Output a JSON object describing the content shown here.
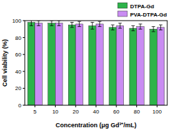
{
  "chart_data": {
    "type": "bar",
    "x_label": "Concentration (μg Gd³⁺/mL)",
    "y_label": "Cell viability (%)",
    "categories": [
      "5",
      "10",
      "20",
      "40",
      "60",
      "80",
      "100"
    ],
    "series": [
      {
        "name": "DTPA-Gd",
        "color": "#2db34a",
        "values": [
          98,
          97,
          95,
          94,
          92,
          91,
          90
        ],
        "errors": [
          4,
          3,
          3,
          4,
          3,
          3,
          3
        ]
      },
      {
        "name": "PVA-DTPA-Gd",
        "color": "#c98cf2",
        "values": [
          97,
          97,
          96,
          96,
          94,
          93,
          92
        ],
        "errors": [
          3,
          3,
          3,
          3,
          3,
          3,
          3
        ]
      }
    ],
    "ylim": [
      0,
      100
    ],
    "yticks": [
      0,
      20,
      40,
      60,
      80,
      100
    ],
    "legend": "top-right"
  }
}
